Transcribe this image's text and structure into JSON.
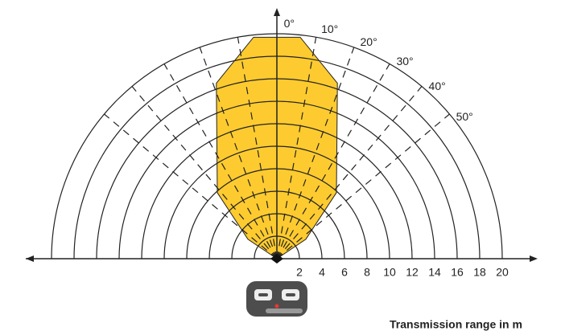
{
  "chart_data": {
    "type": "polar",
    "title": "Transmission range in m",
    "rlim": [
      0,
      20
    ],
    "rticks": [
      2,
      4,
      6,
      8,
      10,
      12,
      14,
      16,
      18,
      20
    ],
    "angle_ticks": [
      {
        "value": 0,
        "label": "0°"
      },
      {
        "value": 10,
        "label": "10°"
      },
      {
        "value": 20,
        "label": "20°"
      },
      {
        "value": 30,
        "label": "30°"
      },
      {
        "value": 40,
        "label": "40°"
      },
      {
        "value": 50,
        "label": "50°"
      }
    ],
    "lobe": {
      "color": "#fdcb2f",
      "angles": [
        -56,
        -42,
        -19,
        -6,
        6,
        19,
        42,
        56
      ],
      "values": [
        3.1,
        7.9,
        16.5,
        19.8,
        19.8,
        16.5,
        7.9,
        3.1
      ]
    }
  }
}
